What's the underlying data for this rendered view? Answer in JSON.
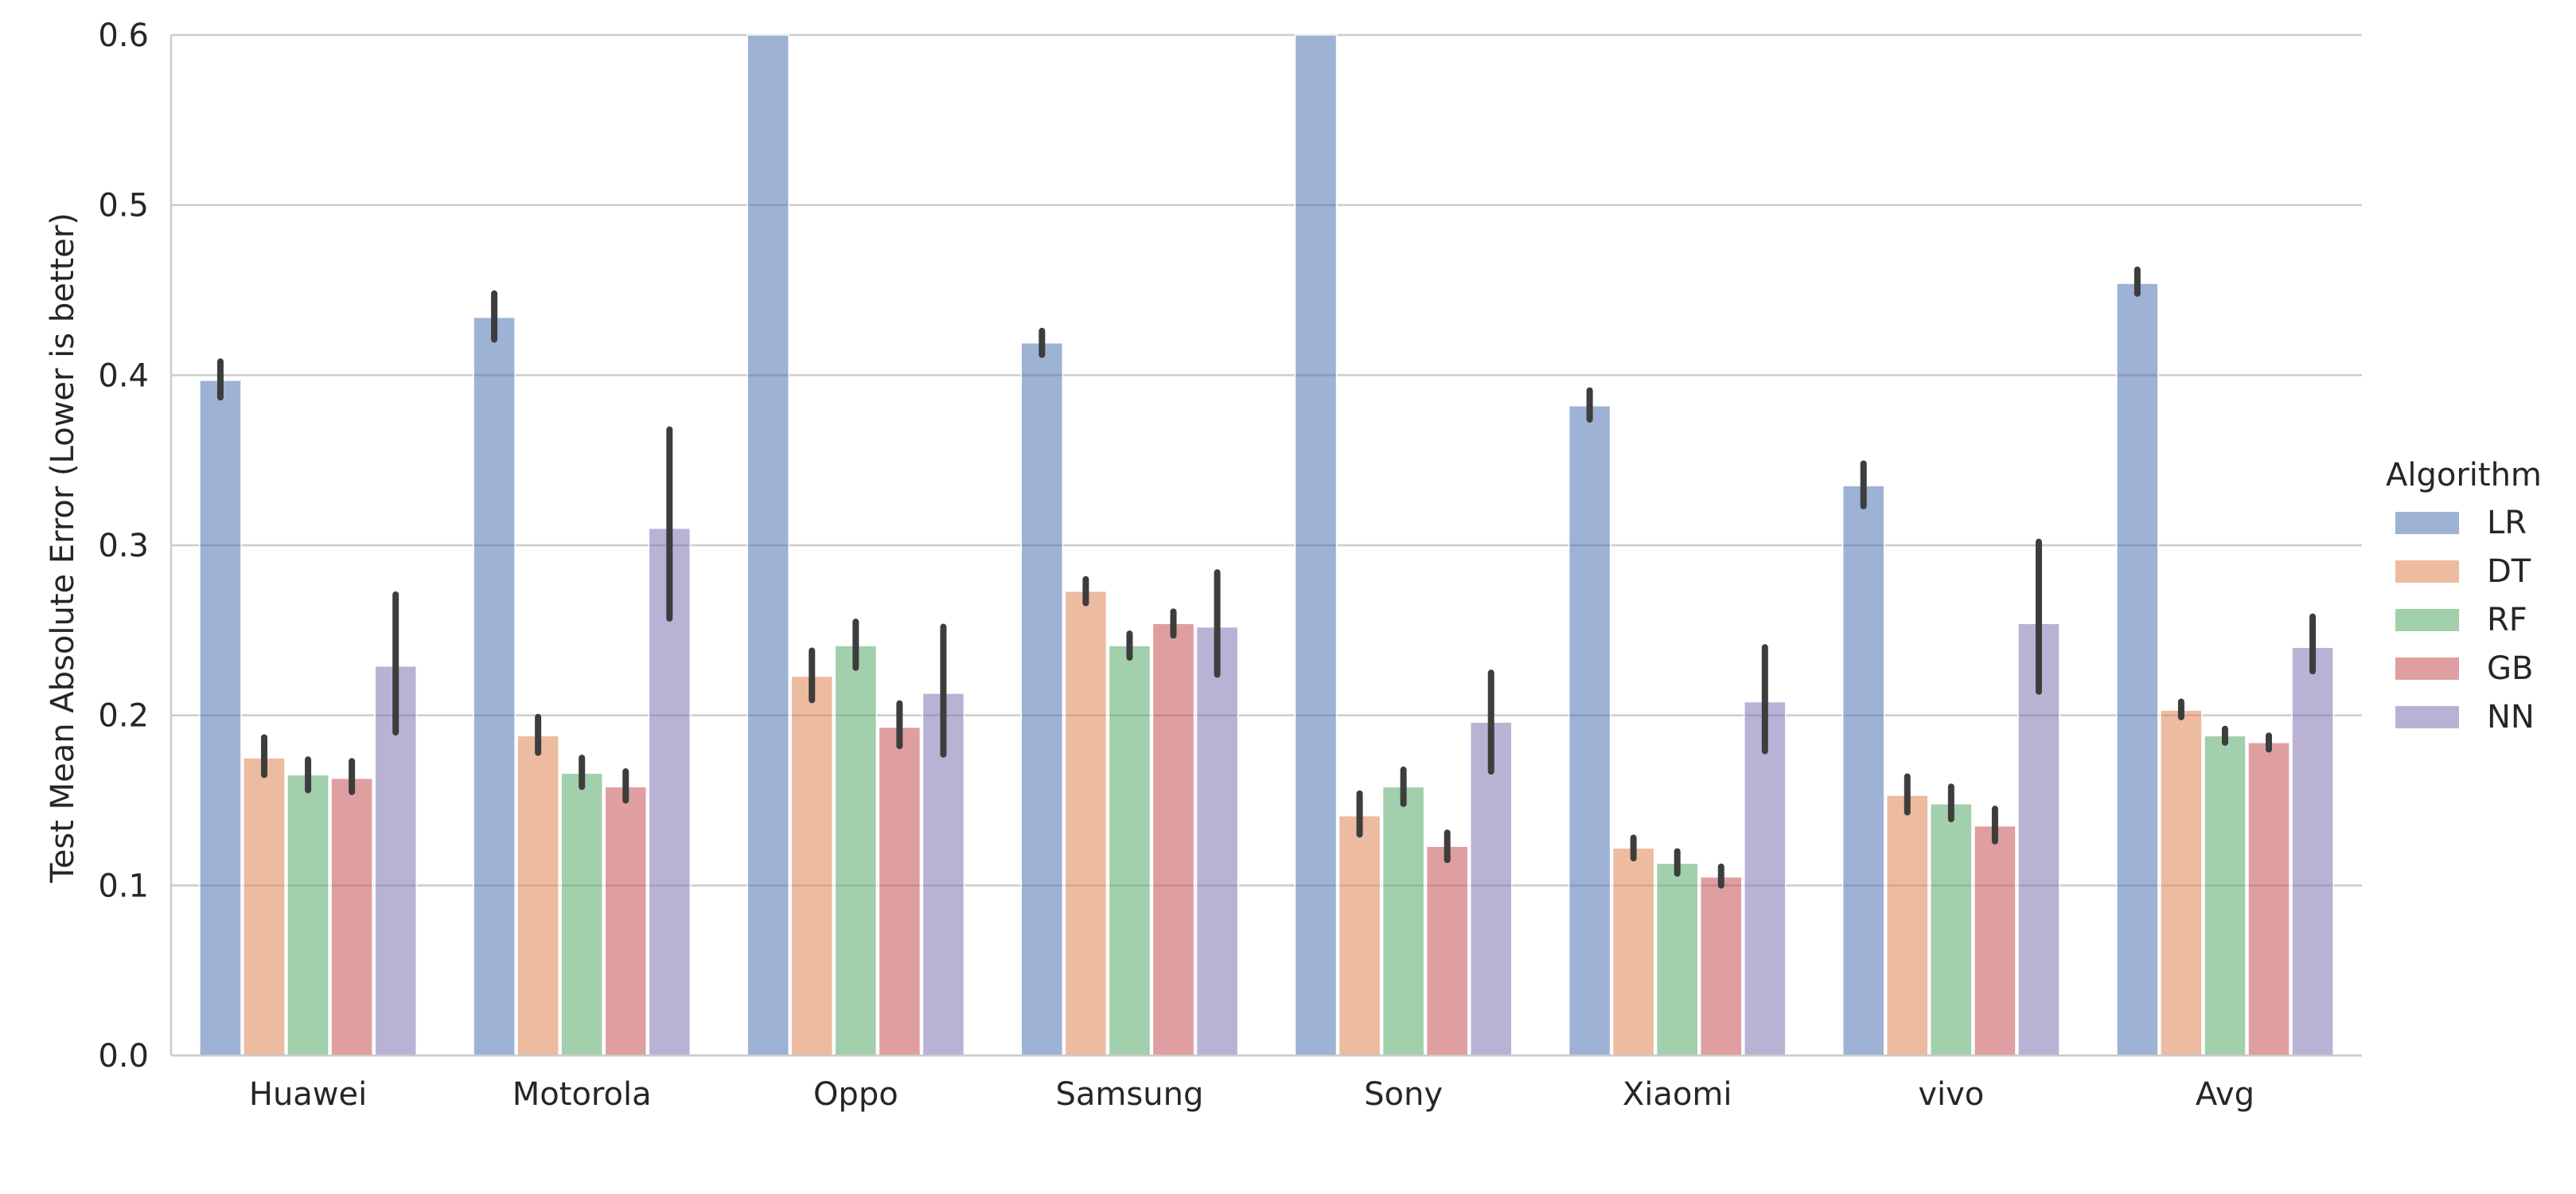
{
  "chart_data": {
    "type": "bar",
    "title": "",
    "xlabel": "",
    "ylabel": "Test Mean Absolute Error (Lower is better)",
    "ylim": [
      0,
      0.6
    ],
    "yticks": [
      "0.0",
      "0.1",
      "0.2",
      "0.3",
      "0.4",
      "0.5",
      "0.6"
    ],
    "grid": "horizontal",
    "legend_title": "Algorithm",
    "legend_position": "right",
    "categories": [
      "Huawei",
      "Motorola",
      "Oppo",
      "Samsung",
      "Sony",
      "Xiaomi",
      "vivo",
      "Avg"
    ],
    "series": [
      {
        "name": "LR",
        "color": "#4C72B0",
        "values": [
          0.397,
          0.434,
          0.6,
          0.419,
          0.6,
          0.382,
          0.335,
          0.454
        ],
        "err_low": [
          0.387,
          0.421,
          null,
          0.412,
          null,
          0.374,
          0.323,
          0.448
        ],
        "err_high": [
          0.408,
          0.448,
          null,
          0.426,
          null,
          0.391,
          0.348,
          0.462
        ]
      },
      {
        "name": "DT",
        "color": "#DD8452",
        "values": [
          0.175,
          0.188,
          0.223,
          0.273,
          0.141,
          0.122,
          0.153,
          0.203
        ],
        "err_low": [
          0.165,
          0.178,
          0.209,
          0.266,
          0.13,
          0.116,
          0.143,
          0.199
        ],
        "err_high": [
          0.187,
          0.199,
          0.238,
          0.28,
          0.154,
          0.128,
          0.164,
          0.208
        ]
      },
      {
        "name": "RF",
        "color": "#55A868",
        "values": [
          0.165,
          0.166,
          0.241,
          0.241,
          0.158,
          0.113,
          0.148,
          0.188
        ],
        "err_low": [
          0.156,
          0.158,
          0.228,
          0.234,
          0.148,
          0.107,
          0.139,
          0.184
        ],
        "err_high": [
          0.174,
          0.175,
          0.255,
          0.248,
          0.168,
          0.12,
          0.158,
          0.192
        ]
      },
      {
        "name": "GB",
        "color": "#C44E52",
        "values": [
          0.163,
          0.158,
          0.193,
          0.254,
          0.123,
          0.105,
          0.135,
          0.184
        ],
        "err_low": [
          0.155,
          0.15,
          0.182,
          0.247,
          0.115,
          0.1,
          0.126,
          0.18
        ],
        "err_high": [
          0.173,
          0.167,
          0.207,
          0.261,
          0.131,
          0.111,
          0.145,
          0.188
        ]
      },
      {
        "name": "NN",
        "color": "#8172B3",
        "values": [
          0.229,
          0.31,
          0.213,
          0.252,
          0.196,
          0.208,
          0.254,
          0.24
        ],
        "err_low": [
          0.19,
          0.257,
          0.177,
          0.224,
          0.167,
          0.179,
          0.214,
          0.226
        ],
        "err_high": [
          0.271,
          0.368,
          0.252,
          0.284,
          0.225,
          0.24,
          0.302,
          0.258
        ]
      }
    ]
  }
}
